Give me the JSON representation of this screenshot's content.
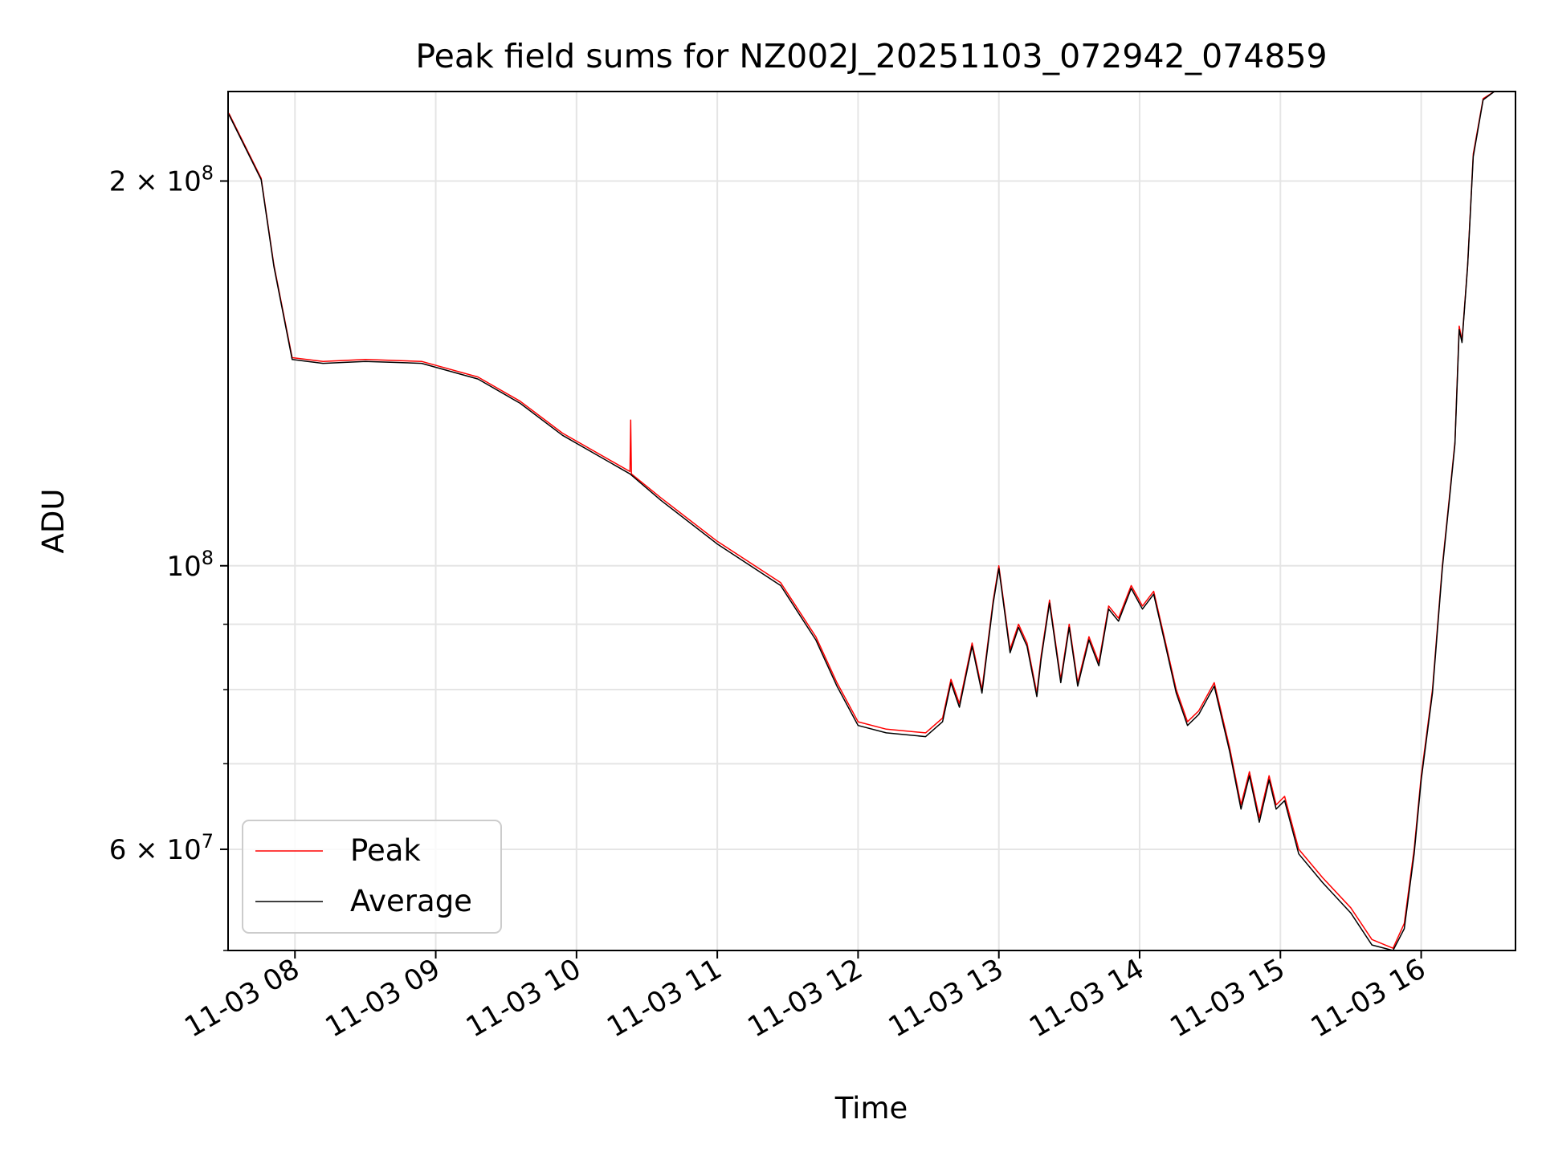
{
  "chart_data": {
    "type": "line",
    "title": "Peak field sums for NZ002J_20251103_072942_074859",
    "xlabel": "Time",
    "ylabel": "ADU",
    "yscale": "log",
    "ylim": [
      50000000,
      235000000
    ],
    "xlim_hours": [
      7.525,
      16.67
    ],
    "grid": true,
    "legend_position": "lower-left",
    "x_ticks": [
      {
        "hour": 8,
        "label": "11-03 08"
      },
      {
        "hour": 9,
        "label": "11-03 09"
      },
      {
        "hour": 10,
        "label": "11-03 10"
      },
      {
        "hour": 11,
        "label": "11-03 11"
      },
      {
        "hour": 12,
        "label": "11-03 12"
      },
      {
        "hour": 13,
        "label": "11-03 13"
      },
      {
        "hour": 14,
        "label": "11-03 14"
      },
      {
        "hour": 15,
        "label": "11-03 15"
      },
      {
        "hour": 16,
        "label": "11-03 16"
      }
    ],
    "y_major_ticks": [
      {
        "value": 100000000,
        "mantissa": "",
        "exponent": "8"
      },
      {
        "value": 200000000,
        "mantissa": "2",
        "exponent": "8"
      },
      {
        "value": 60000000,
        "mantissa": "6",
        "exponent": "7"
      }
    ],
    "y_minor_ticks": [
      70000000,
      80000000,
      90000000
    ],
    "series": [
      {
        "name": "Peak",
        "color": "#ff0000",
        "points": [
          [
            7.53,
            226000000
          ],
          [
            7.76,
            201000000
          ],
          [
            7.85,
            172000000
          ],
          [
            7.98,
            145500000
          ],
          [
            8.2,
            144500000
          ],
          [
            8.5,
            145000000
          ],
          [
            8.9,
            144500000
          ],
          [
            9.3,
            140500000
          ],
          [
            9.6,
            134500000
          ],
          [
            9.9,
            127000000
          ],
          [
            10.38,
            118500000
          ],
          [
            10.385,
            130000000
          ],
          [
            10.39,
            118000000
          ],
          [
            10.6,
            113000000
          ],
          [
            11.0,
            104500000
          ],
          [
            11.45,
            97000000
          ],
          [
            11.7,
            88000000
          ],
          [
            11.85,
            81000000
          ],
          [
            12.0,
            75500000
          ],
          [
            12.2,
            74500000
          ],
          [
            12.48,
            74000000
          ],
          [
            12.6,
            76000000
          ],
          [
            12.66,
            81500000
          ],
          [
            12.72,
            78000000
          ],
          [
            12.81,
            87000000
          ],
          [
            12.88,
            80000000
          ],
          [
            12.96,
            94000000
          ],
          [
            13.0,
            100000000
          ],
          [
            13.08,
            86000000
          ],
          [
            13.14,
            90000000
          ],
          [
            13.2,
            87000000
          ],
          [
            13.27,
            79500000
          ],
          [
            13.3,
            85000000
          ],
          [
            13.36,
            94000000
          ],
          [
            13.44,
            81500000
          ],
          [
            13.5,
            90000000
          ],
          [
            13.56,
            81000000
          ],
          [
            13.64,
            88000000
          ],
          [
            13.71,
            84000000
          ],
          [
            13.78,
            93000000
          ],
          [
            13.85,
            91000000
          ],
          [
            13.94,
            96500000
          ],
          [
            14.02,
            93000000
          ],
          [
            14.1,
            95500000
          ],
          [
            14.18,
            87500000
          ],
          [
            14.26,
            80000000
          ],
          [
            14.34,
            75500000
          ],
          [
            14.42,
            77000000
          ],
          [
            14.53,
            81000000
          ],
          [
            14.64,
            72000000
          ],
          [
            14.72,
            65000000
          ],
          [
            14.78,
            69000000
          ],
          [
            14.85,
            63500000
          ],
          [
            14.92,
            68500000
          ],
          [
            14.97,
            65000000
          ],
          [
            15.03,
            66000000
          ],
          [
            15.13,
            60000000
          ],
          [
            15.3,
            57000000
          ],
          [
            15.5,
            54000000
          ],
          [
            15.65,
            51000000
          ],
          [
            15.8,
            50200000
          ],
          [
            15.88,
            52500000
          ],
          [
            15.95,
            60000000
          ],
          [
            16.0,
            68500000
          ],
          [
            16.08,
            80000000
          ],
          [
            16.15,
            100000000
          ],
          [
            16.2,
            113000000
          ],
          [
            16.24,
            125000000
          ],
          [
            16.27,
            154000000
          ],
          [
            16.29,
            150000000
          ],
          [
            16.33,
            172000000
          ],
          [
            16.37,
            210000000
          ],
          [
            16.44,
            232000000
          ],
          [
            16.52,
            235000000
          ]
        ]
      },
      {
        "name": "Average",
        "color": "#000000",
        "points": [
          [
            7.53,
            225500000
          ],
          [
            7.76,
            200500000
          ],
          [
            7.85,
            171500000
          ],
          [
            7.98,
            145000000
          ],
          [
            8.2,
            144000000
          ],
          [
            8.5,
            144500000
          ],
          [
            8.9,
            144000000
          ],
          [
            9.3,
            140000000
          ],
          [
            9.6,
            134000000
          ],
          [
            9.9,
            126500000
          ],
          [
            10.38,
            118000000
          ],
          [
            10.6,
            112500000
          ],
          [
            11.0,
            104000000
          ],
          [
            11.45,
            96500000
          ],
          [
            11.7,
            87500000
          ],
          [
            11.85,
            80500000
          ],
          [
            12.0,
            75000000
          ],
          [
            12.2,
            74000000
          ],
          [
            12.48,
            73500000
          ],
          [
            12.6,
            75500000
          ],
          [
            12.66,
            81000000
          ],
          [
            12.72,
            77500000
          ],
          [
            12.81,
            86500000
          ],
          [
            12.88,
            79500000
          ],
          [
            12.96,
            93500000
          ],
          [
            13.0,
            99500000
          ],
          [
            13.08,
            85500000
          ],
          [
            13.14,
            89500000
          ],
          [
            13.2,
            86500000
          ],
          [
            13.27,
            79000000
          ],
          [
            13.3,
            84500000
          ],
          [
            13.36,
            93500000
          ],
          [
            13.44,
            81000000
          ],
          [
            13.5,
            89500000
          ],
          [
            13.56,
            80500000
          ],
          [
            13.64,
            87500000
          ],
          [
            13.71,
            83500000
          ],
          [
            13.78,
            92500000
          ],
          [
            13.85,
            90500000
          ],
          [
            13.94,
            96000000
          ],
          [
            14.02,
            92500000
          ],
          [
            14.1,
            95000000
          ],
          [
            14.18,
            87000000
          ],
          [
            14.26,
            79500000
          ],
          [
            14.34,
            75000000
          ],
          [
            14.42,
            76500000
          ],
          [
            14.53,
            80500000
          ],
          [
            14.64,
            71500000
          ],
          [
            14.72,
            64500000
          ],
          [
            14.78,
            68500000
          ],
          [
            14.85,
            63000000
          ],
          [
            14.92,
            68000000
          ],
          [
            14.97,
            64500000
          ],
          [
            15.03,
            65500000
          ],
          [
            15.13,
            59500000
          ],
          [
            15.3,
            56500000
          ],
          [
            15.5,
            53500000
          ],
          [
            15.65,
            50500000
          ],
          [
            15.8,
            50000000
          ],
          [
            15.88,
            52000000
          ],
          [
            15.95,
            59500000
          ],
          [
            16.0,
            68000000
          ],
          [
            16.08,
            79500000
          ],
          [
            16.15,
            99500000
          ],
          [
            16.2,
            112500000
          ],
          [
            16.24,
            124500000
          ],
          [
            16.27,
            153000000
          ],
          [
            16.29,
            149500000
          ],
          [
            16.33,
            171500000
          ],
          [
            16.37,
            209000000
          ],
          [
            16.44,
            231500000
          ],
          [
            16.52,
            235000000
          ]
        ]
      }
    ]
  }
}
